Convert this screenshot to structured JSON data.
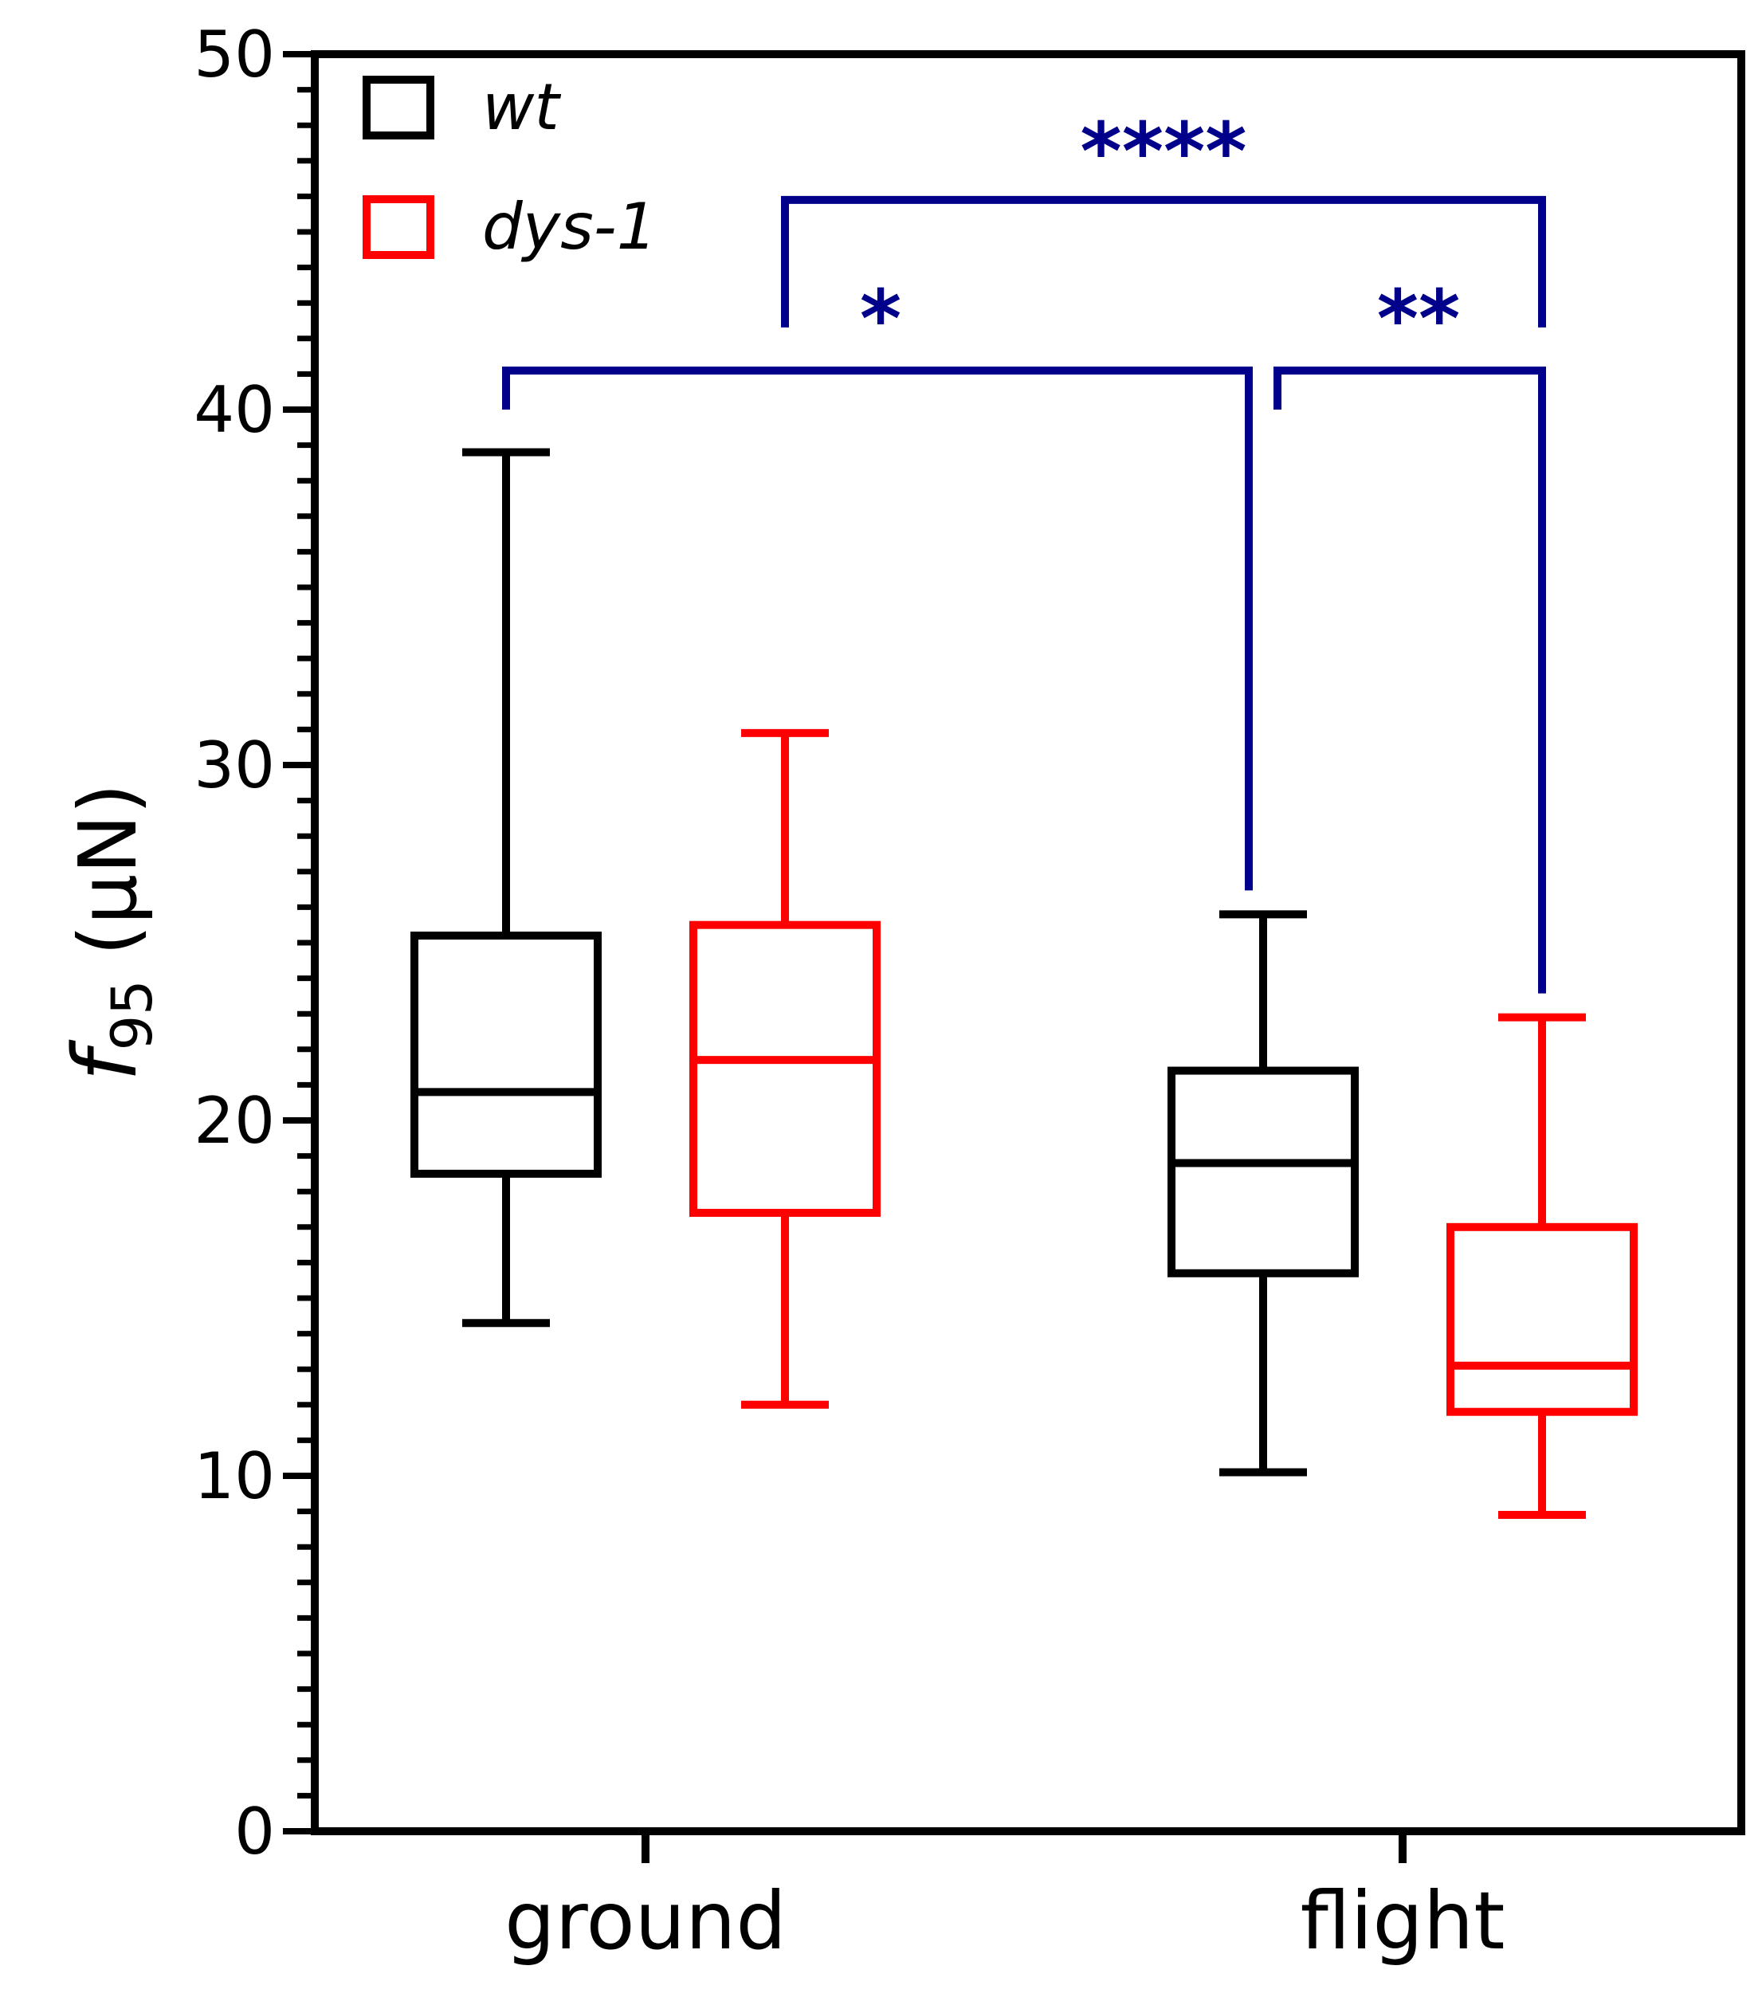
{
  "chart_data": {
    "type": "box",
    "title": "",
    "xlabel": "",
    "ylabel": {
      "main": "f",
      "subscript": "95",
      "unit": "(μN)"
    },
    "ylim": [
      0,
      50
    ],
    "yticks": [
      "0",
      "10",
      "20",
      "30",
      "40",
      "50"
    ],
    "categories": [
      "ground",
      "flight"
    ],
    "series": [
      {
        "name": "wt",
        "color": "#000000",
        "boxes": [
          {
            "category": "ground",
            "min": 14.3,
            "q1": 18.5,
            "median": 20.8,
            "q3": 25.2,
            "max": 38.8
          },
          {
            "category": "flight",
            "min": 10.1,
            "q1": 15.7,
            "median": 18.8,
            "q3": 21.4,
            "max": 25.8
          }
        ]
      },
      {
        "name": "dys-1",
        "color": "#ff0000",
        "boxes": [
          {
            "category": "ground",
            "min": 12.0,
            "q1": 17.4,
            "median": 21.7,
            "q3": 25.5,
            "max": 30.9
          },
          {
            "category": "flight",
            "min": 8.9,
            "q1": 11.8,
            "median": 13.1,
            "q3": 17.0,
            "max": 22.9
          }
        ]
      }
    ],
    "annotations": {
      "color": "#00008b",
      "brackets": [
        {
          "label": "*",
          "from": "wt ground",
          "to": "wt flight",
          "y": 41.1
        },
        {
          "label": "**",
          "from": "wt flight",
          "to": "dys-1 flight",
          "y": 41.1
        },
        {
          "label": "****",
          "from": "dys-1 ground",
          "to": "dys-1 flight",
          "y": 45.9
        }
      ]
    },
    "legend": {
      "position": "top-left",
      "entries": [
        "wt",
        "dys-1"
      ]
    }
  }
}
